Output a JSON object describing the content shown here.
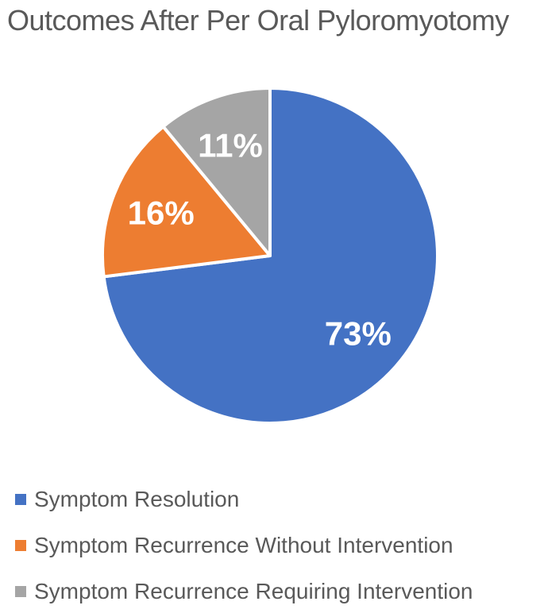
{
  "chart_data": {
    "type": "pie",
    "title": "Outcomes After Per Oral Pyloromyotomy",
    "unit": "%",
    "start_angle_deg": 0,
    "direction": "clockwise",
    "legend_position": "bottom-left",
    "data_label_color": "#FFFFFF",
    "title_color": "#595959",
    "legend_text_color": "#595959",
    "slices": [
      {
        "name": "Symptom Resolution",
        "value": 73,
        "label": "73%",
        "color": "#4472C4"
      },
      {
        "name": "Symptom Recurrence Without Intervention",
        "value": 16,
        "label": "16%",
        "color": "#ED7D31"
      },
      {
        "name": "Symptom Recurrence Requiring Intervention",
        "value": 11,
        "label": "11%",
        "color": "#A5A5A5"
      }
    ]
  }
}
